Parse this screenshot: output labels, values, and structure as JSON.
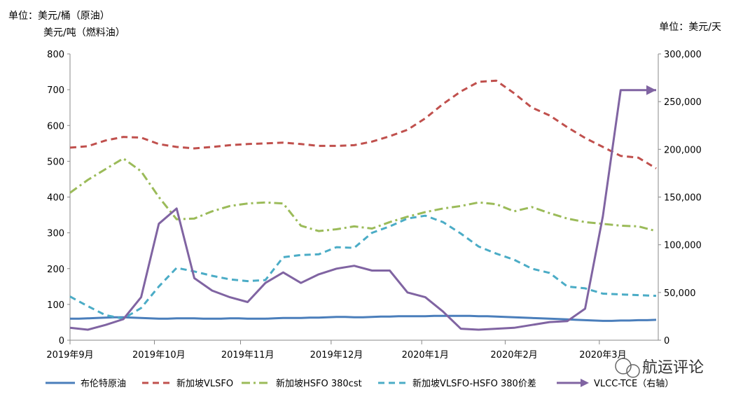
{
  "left_unit_line1": "单位：美元/桶（原油）",
  "left_unit_line2": "美元/吨（燃料油）",
  "right_unit": "单位：美元/天",
  "watermark": "航运评论",
  "colors": {
    "brent": "#4A7EBB",
    "vlsfo": "#C0504D",
    "hsfo": "#9BBB59",
    "spread": "#4BACC6",
    "vlcc": "#8064A2",
    "axis": "#888888"
  },
  "chart_data": {
    "type": "line",
    "x_labels": [
      "2019年9月",
      "2019年10月",
      "2019年11月",
      "2019年12月",
      "2020年1月",
      "2020年2月",
      "2020年3月"
    ],
    "y_left": {
      "min": 0,
      "max": 800,
      "step": 100,
      "ticks": [
        "0",
        "100",
        "200",
        "300",
        "400",
        "500",
        "600",
        "700",
        "800"
      ]
    },
    "y_right": {
      "min": 0,
      "max": 300000,
      "step": 50000,
      "ticks": [
        "0",
        "50,000",
        "100,000",
        "150,000",
        "200,000",
        "250,000",
        "300,000"
      ]
    },
    "grid": false,
    "legend_position": "bottom",
    "series": [
      {
        "name": "布伦特原油",
        "key": "brent",
        "axis": "left",
        "style": "solid",
        "marker": "none",
        "x": [
          0,
          0.5,
          1,
          1.5,
          2,
          2.5,
          3,
          3.5,
          4,
          4.5,
          5,
          5.5,
          6,
          6.5,
          7,
          7.5,
          8,
          8.5,
          9,
          9.5,
          10,
          10.5,
          11,
          11.5,
          12,
          12.5,
          13,
          13.5,
          14,
          14.5,
          15,
          15.5,
          16,
          16.5,
          17,
          17.5,
          18,
          18.5,
          19,
          19.5,
          20,
          20.5,
          21,
          21.5,
          22,
          22.5,
          23,
          23.5,
          24,
          24.5,
          25,
          25.5,
          26,
          26.5,
          27,
          27.5,
          28,
          28.5,
          29,
          29.5,
          30,
          30.5,
          31,
          31.5,
          32,
          32.5,
          33
        ],
        "values": [
          60,
          60,
          61,
          62,
          63,
          64,
          64,
          63,
          62,
          61,
          60,
          60,
          61,
          61,
          61,
          60,
          60,
          60,
          61,
          61,
          60,
          60,
          60,
          61,
          62,
          62,
          62,
          63,
          63,
          64,
          65,
          65,
          64,
          64,
          65,
          66,
          66,
          67,
          67,
          67,
          67,
          68,
          68,
          68,
          68,
          68,
          67,
          67,
          66,
          65,
          64,
          63,
          62,
          61,
          60,
          59,
          58,
          57,
          56,
          55,
          54,
          54,
          55,
          55,
          56,
          56,
          57
        ]
      },
      {
        "name": "新加坡VLSFO",
        "key": "vlsfo",
        "axis": "left",
        "style": "dash",
        "marker": "none",
        "x": [
          0,
          1,
          2,
          3,
          4,
          5,
          6,
          7,
          8,
          9,
          10,
          11,
          12,
          13,
          14,
          15,
          16,
          17,
          18,
          19,
          20,
          21,
          22,
          23,
          24,
          25,
          26,
          27,
          28,
          29,
          30,
          31,
          32,
          33
        ],
        "values": [
          538,
          542,
          558,
          568,
          566,
          548,
          540,
          536,
          540,
          545,
          548,
          550,
          552,
          548,
          543,
          543,
          545,
          555,
          570,
          588,
          620,
          660,
          695,
          722,
          725,
          690,
          650,
          628,
          595,
          565,
          540,
          515,
          510,
          480
        ]
      },
      {
        "name": "新加坡HSFO 380cst",
        "key": "hsfo",
        "axis": "left",
        "style": "dashdot",
        "marker": "none",
        "x": [
          0,
          1,
          2,
          3,
          4,
          5,
          6,
          7,
          8,
          9,
          10,
          11,
          12,
          13,
          14,
          15,
          16,
          17,
          18,
          19,
          20,
          21,
          22,
          23,
          24,
          25,
          26,
          27,
          28,
          29,
          30,
          31,
          32,
          33
        ],
        "values": [
          412,
          448,
          478,
          508,
          472,
          400,
          338,
          340,
          360,
          375,
          382,
          385,
          382,
          320,
          305,
          310,
          318,
          312,
          330,
          345,
          358,
          368,
          375,
          385,
          380,
          360,
          372,
          355,
          340,
          330,
          325,
          320,
          318,
          305
        ]
      },
      {
        "name": "新加坡VLSFO-HSFO 380价差",
        "key": "spread",
        "axis": "left",
        "style": "dash",
        "marker": "none",
        "x": [
          0,
          1,
          2,
          3,
          4,
          5,
          6,
          7,
          8,
          9,
          10,
          11,
          12,
          13,
          14,
          15,
          16,
          17,
          18,
          19,
          20,
          21,
          22,
          23,
          24,
          25,
          26,
          27,
          28,
          29,
          30,
          31,
          32,
          33
        ],
        "values": [
          122,
          95,
          70,
          60,
          90,
          150,
          202,
          192,
          180,
          170,
          165,
          168,
          232,
          238,
          240,
          260,
          258,
          300,
          318,
          340,
          348,
          330,
          298,
          262,
          242,
          225,
          200,
          188,
          150,
          145,
          130,
          128,
          126,
          124
        ]
      },
      {
        "name": "VLCC-TCE（右轴）",
        "key": "vlcc",
        "axis": "right",
        "style": "solid",
        "marker": "arrow",
        "x": [
          0,
          1,
          2,
          3,
          4,
          5,
          6,
          7,
          8,
          9,
          10,
          11,
          12,
          13,
          14,
          15,
          16,
          17,
          18,
          19,
          20,
          21,
          22,
          23,
          24,
          25,
          26,
          27,
          28,
          29,
          30,
          31,
          32,
          33
        ],
        "values": [
          13000,
          11000,
          16000,
          22000,
          45000,
          122000,
          138000,
          65000,
          52000,
          45000,
          40000,
          60000,
          71000,
          60000,
          69000,
          75000,
          78000,
          73000,
          73000,
          50000,
          45000,
          30000,
          12000,
          11000,
          12000,
          13000,
          16000,
          19000,
          20000,
          33000,
          130000,
          262000,
          262000,
          262000
        ]
      }
    ]
  }
}
